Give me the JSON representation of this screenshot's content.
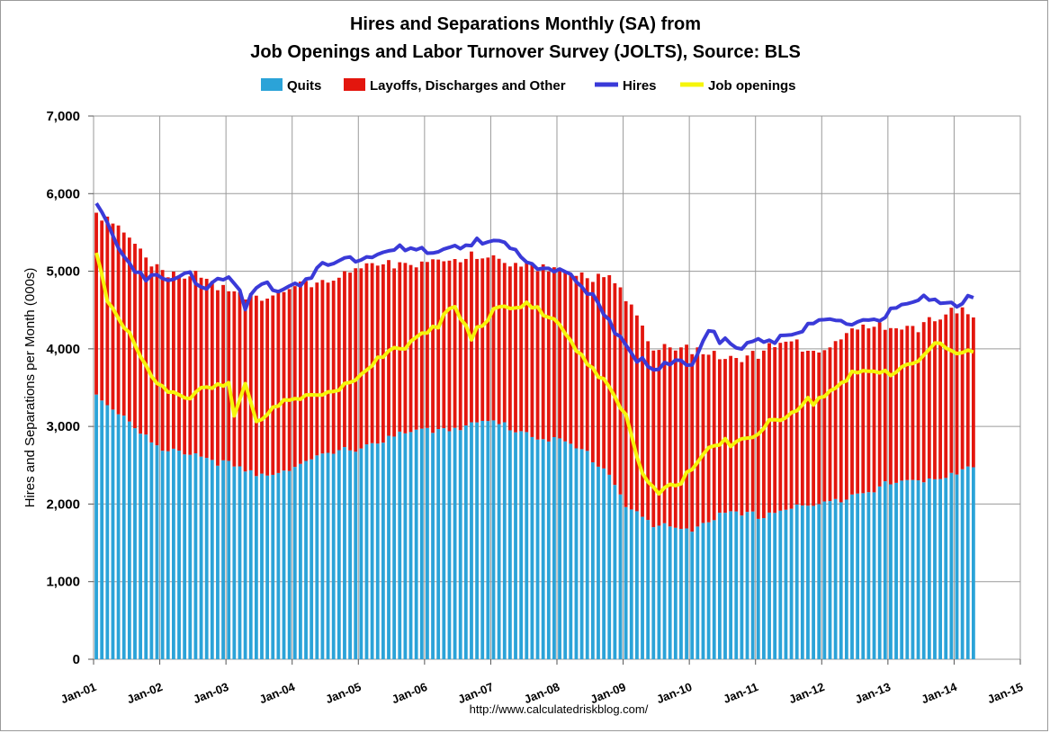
{
  "chart_data": {
    "type": "bar",
    "title_lines": [
      "Hires and Separations Monthly (SA) from",
      "Job Openings and Labor Turnover Survey (JOLTS), Source: BLS"
    ],
    "ylabel": "Hires and Separations per Month (000s)",
    "xlabel": "",
    "source_note": "http://www.calculatedriskblog.com/",
    "ylim": [
      0,
      7000
    ],
    "yticks": [
      0,
      1000,
      2000,
      3000,
      4000,
      5000,
      6000,
      7000
    ],
    "ytick_labels": [
      "0",
      "1,000",
      "2,000",
      "3,000",
      "4,000",
      "5,000",
      "6,000",
      "7,000"
    ],
    "xlim": [
      "2001-01",
      "2015-01"
    ],
    "xtick_labels": [
      "Jan-01",
      "Jan-02",
      "Jan-03",
      "Jan-04",
      "Jan-05",
      "Jan-06",
      "Jan-07",
      "Jan-08",
      "Jan-09",
      "Jan-10",
      "Jan-11",
      "Jan-12",
      "Jan-13",
      "Jan-14",
      "Jan-15"
    ],
    "grid": true,
    "legend_position": "top",
    "start_month": "2001-01",
    "end_month": "2014-04",
    "stacked": true,
    "series": [
      {
        "name": "Quits",
        "kind": "bar",
        "color": "#2ba3d8",
        "anchors": [
          [
            "2001-01",
            3400
          ],
          [
            "2001-06",
            3150
          ],
          [
            "2002-01",
            2650
          ],
          [
            "2002-06",
            2680
          ],
          [
            "2003-01",
            2500
          ],
          [
            "2003-06",
            2350
          ],
          [
            "2004-01",
            2500
          ],
          [
            "2004-06",
            2600
          ],
          [
            "2005-01",
            2750
          ],
          [
            "2005-06",
            2850
          ],
          [
            "2006-01",
            2950
          ],
          [
            "2006-06",
            3000
          ],
          [
            "2007-01",
            3050
          ],
          [
            "2007-06",
            2950
          ],
          [
            "2008-01",
            2800
          ],
          [
            "2008-06",
            2650
          ],
          [
            "2008-10",
            2400
          ],
          [
            "2009-01",
            2000
          ],
          [
            "2009-06",
            1700
          ],
          [
            "2010-01",
            1700
          ],
          [
            "2010-06",
            1850
          ],
          [
            "2011-01",
            1850
          ],
          [
            "2011-06",
            1950
          ],
          [
            "2012-01",
            1980
          ],
          [
            "2012-06",
            2150
          ],
          [
            "2013-01",
            2250
          ],
          [
            "2013-06",
            2300
          ],
          [
            "2014-01",
            2420
          ],
          [
            "2014-04",
            2470
          ]
        ]
      },
      {
        "name": "Layoffs, Discharges and Other",
        "kind": "bar",
        "color": "#e3160e",
        "anchors": [
          [
            "2001-01",
            2450
          ],
          [
            "2001-06",
            2300
          ],
          [
            "2002-01",
            2350
          ],
          [
            "2002-06",
            2250
          ],
          [
            "2003-01",
            2250
          ],
          [
            "2003-06",
            2350
          ],
          [
            "2004-01",
            2250
          ],
          [
            "2004-06",
            2300
          ],
          [
            "2005-01",
            2250
          ],
          [
            "2005-06",
            2250
          ],
          [
            "2006-01",
            2150
          ],
          [
            "2006-06",
            2100
          ],
          [
            "2007-01",
            2150
          ],
          [
            "2007-06",
            2100
          ],
          [
            "2008-01",
            2200
          ],
          [
            "2008-06",
            2300
          ],
          [
            "2008-10",
            2500
          ],
          [
            "2009-01",
            2650
          ],
          [
            "2009-06",
            2350
          ],
          [
            "2010-01",
            2250
          ],
          [
            "2010-06",
            2050
          ],
          [
            "2011-01",
            2100
          ],
          [
            "2011-06",
            2100
          ],
          [
            "2012-01",
            2050
          ],
          [
            "2012-06",
            2100
          ],
          [
            "2013-01",
            2050
          ],
          [
            "2013-06",
            2000
          ],
          [
            "2014-01",
            2030
          ],
          [
            "2014-04",
            1980
          ]
        ]
      },
      {
        "name": "Hires",
        "kind": "line",
        "color": "#3a3ad8",
        "anchors": [
          [
            "2001-01",
            5850
          ],
          [
            "2001-03",
            5600
          ],
          [
            "2001-06",
            5200
          ],
          [
            "2001-09",
            5000
          ],
          [
            "2002-01",
            4850
          ],
          [
            "2002-06",
            4950
          ],
          [
            "2002-09",
            4850
          ],
          [
            "2003-01",
            5000
          ],
          [
            "2003-04",
            4500
          ],
          [
            "2003-06",
            4750
          ],
          [
            "2003-09",
            4800
          ],
          [
            "2004-01",
            4850
          ],
          [
            "2004-06",
            5050
          ],
          [
            "2005-01",
            5200
          ],
          [
            "2005-06",
            5300
          ],
          [
            "2006-01",
            5200
          ],
          [
            "2006-06",
            5350
          ],
          [
            "2007-01",
            5350
          ],
          [
            "2007-06",
            5200
          ],
          [
            "2008-01",
            5000
          ],
          [
            "2008-06",
            4700
          ],
          [
            "2008-10",
            4400
          ],
          [
            "2009-01",
            4050
          ],
          [
            "2009-06",
            3700
          ],
          [
            "2010-01",
            3850
          ],
          [
            "2010-04",
            4300
          ],
          [
            "2010-09",
            3950
          ],
          [
            "2011-01",
            4100
          ],
          [
            "2011-06",
            4200
          ],
          [
            "2012-01",
            4300
          ],
          [
            "2012-06",
            4350
          ],
          [
            "2013-01",
            4450
          ],
          [
            "2013-06",
            4550
          ],
          [
            "2013-09",
            4700
          ],
          [
            "2014-01",
            4600
          ],
          [
            "2014-04",
            4620
          ]
        ]
      },
      {
        "name": "Job openings",
        "kind": "line",
        "color": "#f5f50a",
        "anchors": [
          [
            "2001-01",
            5300
          ],
          [
            "2001-03",
            4650
          ],
          [
            "2001-06",
            4250
          ],
          [
            "2001-09",
            3900
          ],
          [
            "2001-11",
            3600
          ],
          [
            "2002-01",
            3550
          ],
          [
            "2002-06",
            3400
          ],
          [
            "2003-01",
            3500
          ],
          [
            "2003-02",
            3100
          ],
          [
            "2003-04",
            3600
          ],
          [
            "2003-06",
            3100
          ],
          [
            "2003-09",
            3250
          ],
          [
            "2004-01",
            3300
          ],
          [
            "2004-06",
            3450
          ],
          [
            "2005-01",
            3650
          ],
          [
            "2005-06",
            3950
          ],
          [
            "2006-01",
            4250
          ],
          [
            "2006-06",
            4500
          ],
          [
            "2006-09",
            4100
          ],
          [
            "2007-01",
            4550
          ],
          [
            "2007-06",
            4600
          ],
          [
            "2008-01",
            4300
          ],
          [
            "2008-06",
            3850
          ],
          [
            "2008-10",
            3500
          ],
          [
            "2009-01",
            3100
          ],
          [
            "2009-04",
            2350
          ],
          [
            "2009-07",
            2200
          ],
          [
            "2010-01",
            2400
          ],
          [
            "2010-04",
            2650
          ],
          [
            "2010-09",
            2850
          ],
          [
            "2011-01",
            2950
          ],
          [
            "2011-06",
            3100
          ],
          [
            "2012-01",
            3450
          ],
          [
            "2012-06",
            3650
          ],
          [
            "2013-01",
            3700
          ],
          [
            "2013-06",
            3900
          ],
          [
            "2013-09",
            4050
          ],
          [
            "2014-01",
            3900
          ],
          [
            "2014-04",
            4000
          ]
        ]
      }
    ]
  }
}
